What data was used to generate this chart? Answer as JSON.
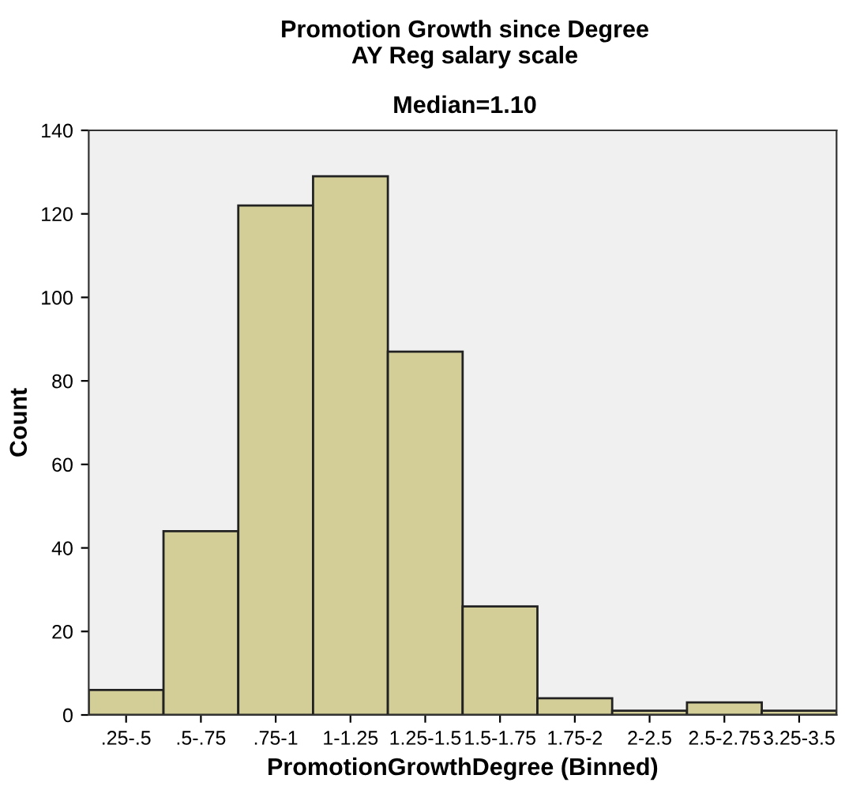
{
  "chart_data": {
    "type": "bar",
    "title": "Promotion Growth since Degree\nAY Reg salary scale",
    "subtitle": "Median=1.10",
    "xlabel": "PromotionGrowthDegree (Binned)",
    "ylabel": "Count",
    "categories": [
      ".25-.5",
      ".5-.75",
      ".75-1",
      "1-1.25",
      "1.25-1.5",
      "1.5-1.75",
      "1.75-2",
      "2-2.5",
      "2.5-2.75",
      "3.25-3.5"
    ],
    "values": [
      6,
      44,
      122,
      129,
      87,
      26,
      4,
      1,
      3,
      1
    ],
    "color": "#d3ce97",
    "ylim": [
      0,
      140
    ],
    "yticks": [
      0,
      20,
      40,
      60,
      80,
      100,
      120,
      140
    ],
    "grid": false,
    "legend": false
  }
}
